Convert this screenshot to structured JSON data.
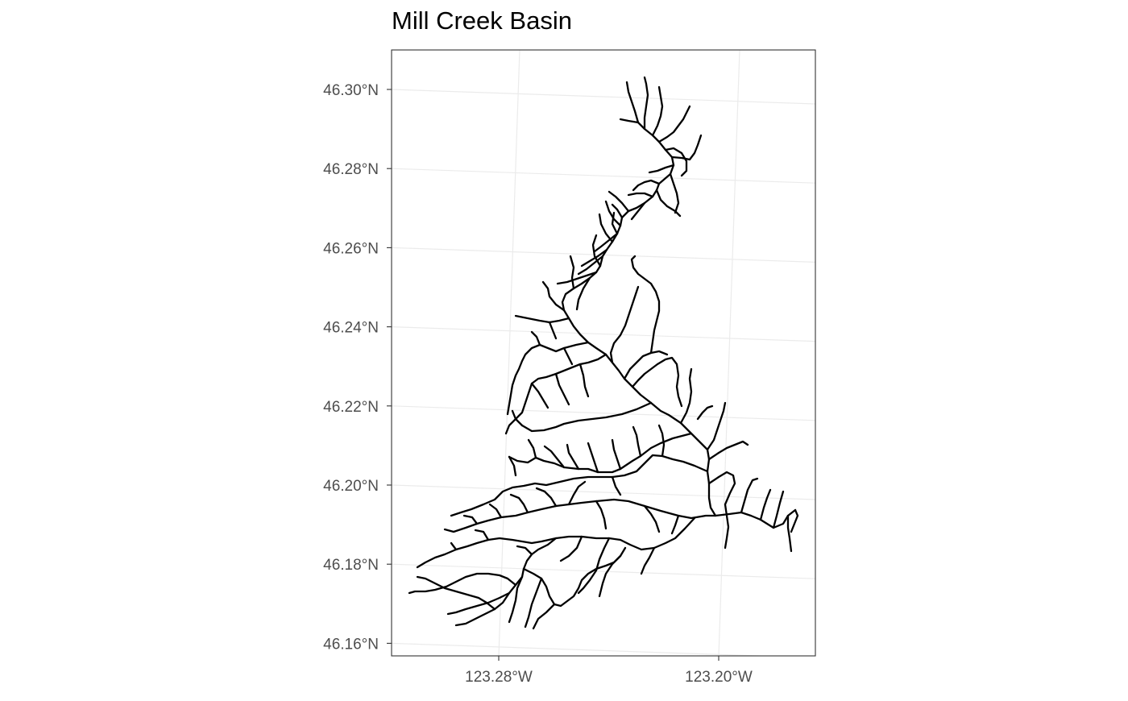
{
  "map": {
    "title": "Mill Creek Basin",
    "y_ticks": [
      "46.30°N",
      "46.28°N",
      "46.26°N",
      "46.24°N",
      "46.22°N",
      "46.20°N",
      "46.18°N",
      "46.16°N"
    ],
    "x_ticks": [
      "123.28°W",
      "123.20°W"
    ],
    "grid": true,
    "theme": "black-and-white",
    "colors": {
      "stream": "#000000",
      "grid": "#ebebeb",
      "panel_border": "#333333",
      "tick_label": "#4d4d4d",
      "title": "#000000"
    }
  }
}
